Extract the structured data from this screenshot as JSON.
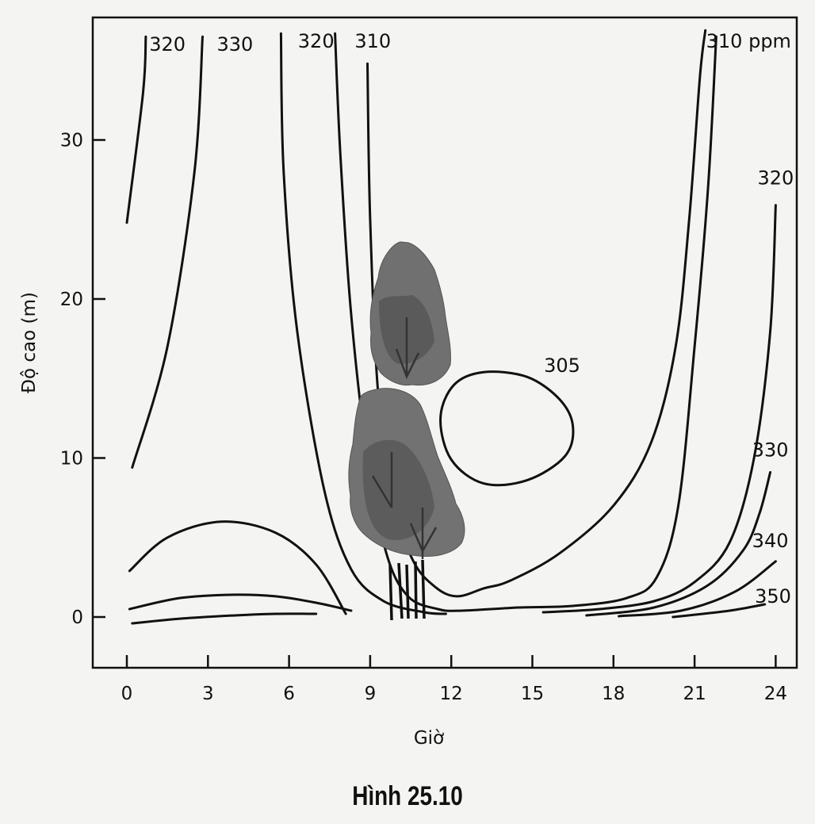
{
  "figure": {
    "caption": "Hình 25.10"
  },
  "chart_data": {
    "type": "line",
    "subtype": "contour",
    "xlabel": "Giờ",
    "ylabel": "Độ cao (m)",
    "xlim": [
      -1.2,
      24.5
    ],
    "ylim": [
      -3.3,
      37
    ],
    "x_ticks": [
      "0",
      "3",
      "6",
      "9",
      "12",
      "15",
      "18",
      "21",
      "24"
    ],
    "y_ticks": [
      "0",
      "10",
      "20",
      "30"
    ],
    "grid": false,
    "legend": "none",
    "illustration": "tree-icon",
    "labels": [
      {
        "text": "320",
        "x": 1.5,
        "y": 35.6
      },
      {
        "text": "330",
        "x": 4.0,
        "y": 35.6
      },
      {
        "text": "320",
        "x": 7.0,
        "y": 35.8
      },
      {
        "text": "310",
        "x": 9.1,
        "y": 35.8
      },
      {
        "text": "310 ppm",
        "x": 23.0,
        "y": 35.8
      },
      {
        "text": "320",
        "x": 24.0,
        "y": 27.2
      },
      {
        "text": "305",
        "x": 16.1,
        "y": 15.4
      },
      {
        "text": "330",
        "x": 23.8,
        "y": 10.1
      },
      {
        "text": "340",
        "x": 23.8,
        "y": 4.4
      },
      {
        "text": "350",
        "x": 23.9,
        "y": 0.9
      }
    ],
    "series": [
      {
        "value": 320,
        "points": [
          [
            0.0,
            24.8
          ],
          [
            0.6,
            33.0
          ],
          [
            0.7,
            36.5
          ]
        ]
      },
      {
        "value": 330,
        "points": [
          [
            0.2,
            9.4
          ],
          [
            1.5,
            17.0
          ],
          [
            2.5,
            28.0
          ],
          [
            2.8,
            36.5
          ]
        ]
      },
      {
        "value": 320,
        "points": [
          [
            5.7,
            36.7
          ],
          [
            5.8,
            28.0
          ],
          [
            6.3,
            18.0
          ],
          [
            7.3,
            8.0
          ],
          [
            8.3,
            3.0
          ],
          [
            9.5,
            1.0
          ],
          [
            11.0,
            0.3
          ],
          [
            11.8,
            0.2
          ]
        ]
      },
      {
        "value": 310,
        "points": [
          [
            7.7,
            36.7
          ],
          [
            7.9,
            29.0
          ],
          [
            8.3,
            19.0
          ],
          [
            8.9,
            10.0
          ],
          [
            9.6,
            4.0
          ],
          [
            10.4,
            1.3
          ],
          [
            11.5,
            0.5
          ],
          [
            12.4,
            0.4
          ],
          [
            14.5,
            0.6
          ],
          [
            16.5,
            0.7
          ],
          [
            18.5,
            1.2
          ],
          [
            19.6,
            2.5
          ],
          [
            20.4,
            7.0
          ],
          [
            21.0,
            17.0
          ],
          [
            21.5,
            27.0
          ],
          [
            21.8,
            36.5
          ]
        ]
      },
      {
        "value": 310,
        "points": [
          [
            8.9,
            34.8
          ],
          [
            9.0,
            25.0
          ],
          [
            9.3,
            14.0
          ],
          [
            9.9,
            7.0
          ],
          [
            10.6,
            3.5
          ],
          [
            11.4,
            1.9
          ],
          [
            12.2,
            1.3
          ],
          [
            13.2,
            1.8
          ],
          [
            14.2,
            2.3
          ],
          [
            16.0,
            4.0
          ],
          [
            18.0,
            7.0
          ],
          [
            19.4,
            11.0
          ],
          [
            20.3,
            17.0
          ],
          [
            20.8,
            25.0
          ],
          [
            21.2,
            34.0
          ],
          [
            21.4,
            36.9
          ]
        ]
      },
      {
        "value": 305,
        "closed": true,
        "points": [
          [
            11.6,
            12.5
          ],
          [
            12.1,
            14.6
          ],
          [
            13.2,
            15.4
          ],
          [
            14.8,
            15.1
          ],
          [
            16.0,
            13.7
          ],
          [
            16.5,
            12.0
          ],
          [
            16.2,
            10.1
          ],
          [
            14.8,
            8.6
          ],
          [
            13.2,
            8.4
          ],
          [
            12.0,
            9.9
          ]
        ]
      },
      {
        "value": 320,
        "points": [
          [
            15.4,
            0.3
          ],
          [
            17.5,
            0.5
          ],
          [
            19.5,
            1.0
          ],
          [
            21.0,
            2.2
          ],
          [
            22.3,
            4.7
          ],
          [
            23.2,
            10.0
          ],
          [
            23.8,
            18.0
          ],
          [
            24.0,
            25.9
          ]
        ]
      },
      {
        "value": 330,
        "points": [
          [
            17.0,
            0.1
          ],
          [
            19.5,
            0.6
          ],
          [
            21.5,
            2.0
          ],
          [
            22.8,
            4.2
          ],
          [
            23.4,
            6.5
          ],
          [
            23.8,
            9.1
          ]
        ]
      },
      {
        "value": 340,
        "points": [
          [
            18.2,
            0.05
          ],
          [
            20.5,
            0.4
          ],
          [
            22.5,
            1.6
          ],
          [
            24.0,
            3.5
          ]
        ]
      },
      {
        "value": 350,
        "points": [
          [
            20.2,
            0.0
          ],
          [
            22.3,
            0.4
          ],
          [
            23.6,
            0.8
          ]
        ]
      },
      {
        "value": null,
        "points": [
          [
            0.1,
            2.9
          ],
          [
            1.5,
            5.0
          ],
          [
            3.5,
            6.0
          ],
          [
            5.5,
            5.3
          ],
          [
            7.0,
            3.3
          ],
          [
            8.1,
            0.2
          ]
        ]
      },
      {
        "value": null,
        "points": [
          [
            0.1,
            0.5
          ],
          [
            2.0,
            1.2
          ],
          [
            4.0,
            1.4
          ],
          [
            5.5,
            1.3
          ],
          [
            7.0,
            0.9
          ],
          [
            8.3,
            0.4
          ]
        ]
      },
      {
        "value": null,
        "points": [
          [
            0.2,
            -0.4
          ],
          [
            2.0,
            -0.1
          ],
          [
            4.0,
            0.1
          ],
          [
            5.5,
            0.2
          ],
          [
            7.0,
            0.2
          ]
        ]
      }
    ]
  }
}
